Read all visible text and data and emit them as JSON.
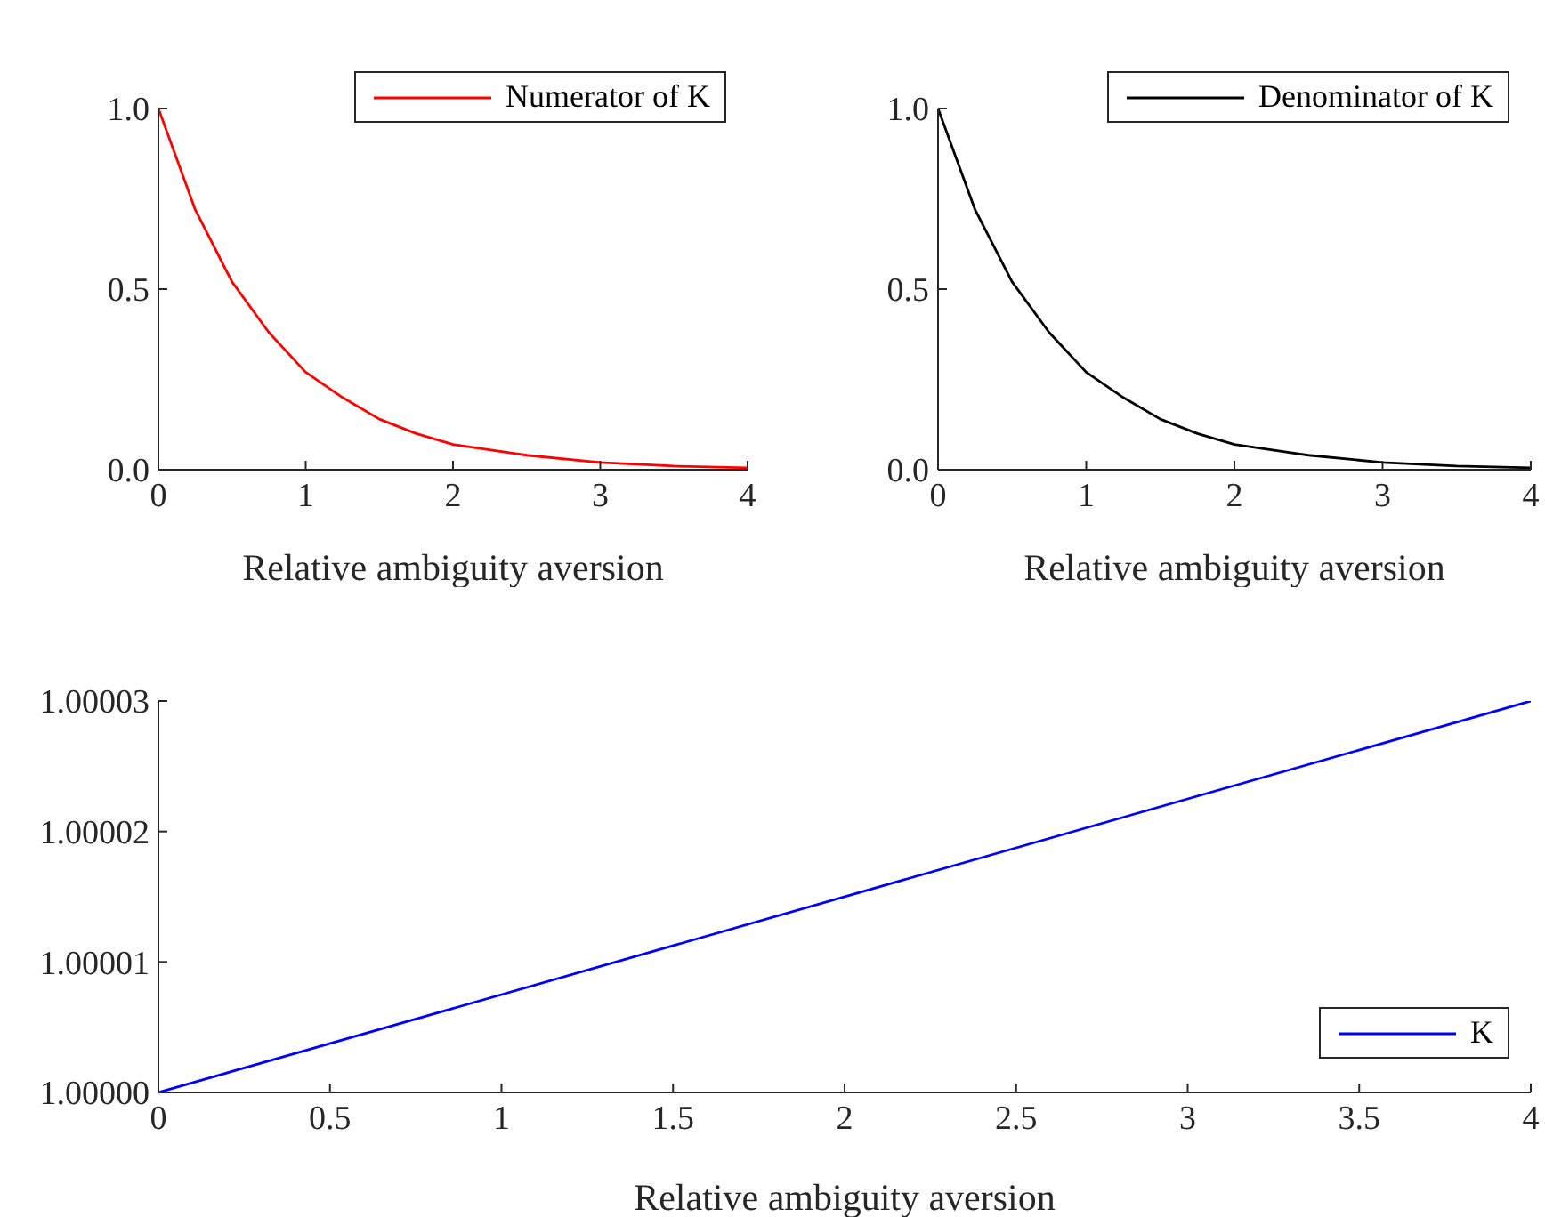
{
  "chart_data": [
    {
      "type": "line",
      "xlabel": "Relative ambiguity aversion",
      "x": [
        0,
        0.25,
        0.5,
        0.75,
        1,
        1.25,
        1.5,
        1.75,
        2,
        2.5,
        3,
        3.5,
        4
      ],
      "series": [
        {
          "name": "Numerator of K",
          "color": "#ff0000",
          "values": [
            1,
            0.72,
            0.52,
            0.38,
            0.27,
            0.2,
            0.14,
            0.1,
            0.07,
            0.04,
            0.02,
            0.01,
            0.005
          ]
        }
      ],
      "xlim": [
        0,
        4
      ],
      "xticks": [
        0,
        1,
        2,
        3,
        4
      ],
      "ylim": [
        0,
        1
      ],
      "yticks": [
        {
          "value": 0,
          "label": "0.0"
        },
        {
          "value": 0.5,
          "label": "0.5"
        },
        {
          "value": 1,
          "label": "1.0"
        }
      ],
      "legend": "top right",
      "line_style": "solid",
      "grid": false
    },
    {
      "type": "line",
      "xlabel": "Relative ambiguity aversion",
      "x": [
        0,
        0.25,
        0.5,
        0.75,
        1,
        1.25,
        1.5,
        1.75,
        2,
        2.5,
        3,
        3.5,
        4
      ],
      "series": [
        {
          "name": "Denominator of K",
          "color": "#000000",
          "values": [
            1,
            0.72,
            0.52,
            0.38,
            0.27,
            0.2,
            0.14,
            0.1,
            0.07,
            0.04,
            0.02,
            0.01,
            0.005
          ]
        }
      ],
      "xlim": [
        0,
        4
      ],
      "xticks": [
        0,
        1,
        2,
        3,
        4
      ],
      "ylim": [
        0,
        1
      ],
      "yticks": [
        {
          "value": 0,
          "label": "0.0"
        },
        {
          "value": 0.5,
          "label": "0.5"
        },
        {
          "value": 1,
          "label": "1.0"
        }
      ],
      "legend": "top right",
      "line_style": "solid",
      "grid": false
    },
    {
      "type": "line",
      "xlabel": "Relative ambiguity aversion",
      "x": [
        0,
        4
      ],
      "series": [
        {
          "name": "K",
          "color": "#0000ff",
          "values": [
            1,
            1.00003
          ]
        }
      ],
      "xlim": [
        0,
        4
      ],
      "xticks": [
        0,
        0.5,
        1,
        1.5,
        2,
        2.5,
        3,
        3.5,
        4
      ],
      "ylim": [
        1,
        1.00003
      ],
      "yticks": [
        {
          "value": 1,
          "label": "1.00000"
        },
        {
          "value": 1.00001,
          "label": "1.00001"
        },
        {
          "value": 1.00002,
          "label": "1.00002"
        },
        {
          "value": 1.00003,
          "label": "1.00003"
        }
      ],
      "legend": "bottom right",
      "line_style": "solid",
      "grid": false
    }
  ]
}
